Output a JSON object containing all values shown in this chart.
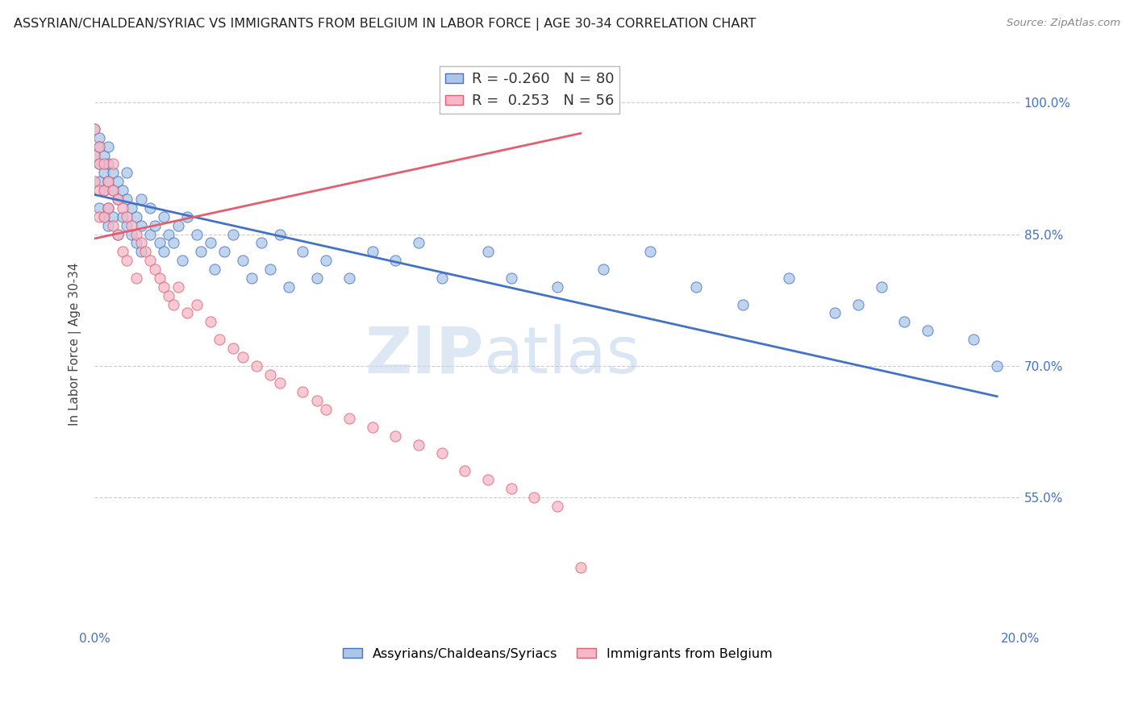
{
  "title": "ASSYRIAN/CHALDEAN/SYRIAC VS IMMIGRANTS FROM BELGIUM IN LABOR FORCE | AGE 30-34 CORRELATION CHART",
  "source": "Source: ZipAtlas.com",
  "ylabel": "In Labor Force | Age 30-34",
  "x_min": 0.0,
  "x_max": 0.2,
  "y_min": 0.4,
  "y_max": 1.05,
  "x_ticks": [
    0.0,
    0.04,
    0.08,
    0.12,
    0.16,
    0.2
  ],
  "x_tick_labels_show": [
    "0.0%",
    "20.0%"
  ],
  "y_ticks": [
    0.55,
    0.7,
    0.85,
    1.0
  ],
  "y_tick_labels": [
    "55.0%",
    "70.0%",
    "85.0%",
    "100.0%"
  ],
  "blue_R": "-0.260",
  "blue_N": "80",
  "pink_R": "0.253",
  "pink_N": "56",
  "blue_color": "#adc6e8",
  "pink_color": "#f5b8c8",
  "blue_line_color": "#4472c4",
  "pink_line_color": "#e06070",
  "legend_label_blue": "Assyrians/Chaldeans/Syriacs",
  "legend_label_pink": "Immigrants from Belgium",
  "watermark_zip": "ZIP",
  "watermark_atlas": "atlas",
  "blue_scatter_x": [
    0.0,
    0.0,
    0.001,
    0.001,
    0.001,
    0.001,
    0.001,
    0.002,
    0.002,
    0.002,
    0.002,
    0.003,
    0.003,
    0.003,
    0.003,
    0.003,
    0.004,
    0.004,
    0.004,
    0.005,
    0.005,
    0.005,
    0.006,
    0.006,
    0.007,
    0.007,
    0.007,
    0.008,
    0.008,
    0.009,
    0.009,
    0.01,
    0.01,
    0.01,
    0.012,
    0.012,
    0.013,
    0.014,
    0.015,
    0.015,
    0.016,
    0.017,
    0.018,
    0.019,
    0.02,
    0.022,
    0.023,
    0.025,
    0.026,
    0.028,
    0.03,
    0.032,
    0.034,
    0.036,
    0.038,
    0.04,
    0.042,
    0.045,
    0.048,
    0.05,
    0.055,
    0.06,
    0.065,
    0.07,
    0.075,
    0.085,
    0.09,
    0.1,
    0.11,
    0.12,
    0.13,
    0.14,
    0.15,
    0.16,
    0.165,
    0.17,
    0.175,
    0.18,
    0.19,
    0.195
  ],
  "blue_scatter_y": [
    0.97,
    0.94,
    0.96,
    0.95,
    0.93,
    0.91,
    0.88,
    0.94,
    0.92,
    0.9,
    0.87,
    0.95,
    0.93,
    0.91,
    0.88,
    0.86,
    0.92,
    0.9,
    0.87,
    0.91,
    0.89,
    0.85,
    0.9,
    0.87,
    0.92,
    0.89,
    0.86,
    0.88,
    0.85,
    0.87,
    0.84,
    0.89,
    0.86,
    0.83,
    0.88,
    0.85,
    0.86,
    0.84,
    0.87,
    0.83,
    0.85,
    0.84,
    0.86,
    0.82,
    0.87,
    0.85,
    0.83,
    0.84,
    0.81,
    0.83,
    0.85,
    0.82,
    0.8,
    0.84,
    0.81,
    0.85,
    0.79,
    0.83,
    0.8,
    0.82,
    0.8,
    0.83,
    0.82,
    0.84,
    0.8,
    0.83,
    0.8,
    0.79,
    0.81,
    0.83,
    0.79,
    0.77,
    0.8,
    0.76,
    0.77,
    0.79,
    0.75,
    0.74,
    0.73,
    0.7
  ],
  "pink_scatter_x": [
    0.0,
    0.0,
    0.0,
    0.001,
    0.001,
    0.001,
    0.001,
    0.002,
    0.002,
    0.002,
    0.003,
    0.003,
    0.004,
    0.004,
    0.004,
    0.005,
    0.005,
    0.006,
    0.006,
    0.007,
    0.007,
    0.008,
    0.009,
    0.009,
    0.01,
    0.011,
    0.012,
    0.013,
    0.014,
    0.015,
    0.016,
    0.017,
    0.018,
    0.02,
    0.022,
    0.025,
    0.027,
    0.03,
    0.032,
    0.035,
    0.038,
    0.04,
    0.045,
    0.048,
    0.05,
    0.055,
    0.06,
    0.065,
    0.07,
    0.075,
    0.08,
    0.085,
    0.09,
    0.095,
    0.1,
    0.105
  ],
  "pink_scatter_y": [
    0.97,
    0.94,
    0.91,
    0.95,
    0.93,
    0.9,
    0.87,
    0.93,
    0.9,
    0.87,
    0.91,
    0.88,
    0.93,
    0.9,
    0.86,
    0.89,
    0.85,
    0.88,
    0.83,
    0.87,
    0.82,
    0.86,
    0.85,
    0.8,
    0.84,
    0.83,
    0.82,
    0.81,
    0.8,
    0.79,
    0.78,
    0.77,
    0.79,
    0.76,
    0.77,
    0.75,
    0.73,
    0.72,
    0.71,
    0.7,
    0.69,
    0.68,
    0.67,
    0.66,
    0.65,
    0.64,
    0.63,
    0.62,
    0.61,
    0.6,
    0.58,
    0.57,
    0.56,
    0.55,
    0.54,
    0.47
  ],
  "blue_line_x": [
    0.0,
    0.195
  ],
  "blue_line_y": [
    0.895,
    0.665
  ],
  "pink_line_x": [
    0.0,
    0.105
  ],
  "pink_line_y": [
    0.845,
    0.965
  ]
}
